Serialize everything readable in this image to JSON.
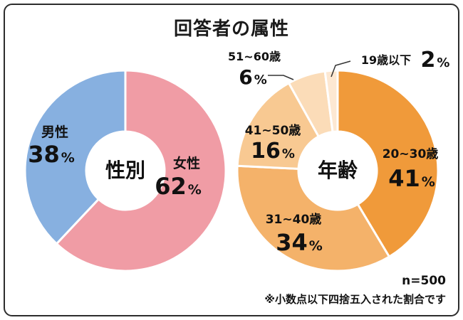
{
  "title": "回答者の属性",
  "sample_size": "n=500",
  "footnote": "※小数点以下四捨五入された割合です",
  "chart_data": [
    {
      "type": "pie",
      "style": "donut",
      "center_label": "性別",
      "slices": [
        {
          "label": "女性",
          "value": 62,
          "display": "62",
          "color": "#f09ca5"
        },
        {
          "label": "男性",
          "value": 38,
          "display": "38",
          "color": "#87b0e0"
        }
      ]
    },
    {
      "type": "pie",
      "style": "donut",
      "center_label": "年齢",
      "slices": [
        {
          "label": "20~30歳",
          "value": 41,
          "display": "41",
          "color": "#f09a3a"
        },
        {
          "label": "31~40歳",
          "value": 34,
          "display": "34",
          "color": "#f4b26a"
        },
        {
          "label": "41~50歳",
          "value": 16,
          "display": "16",
          "color": "#f8c992"
        },
        {
          "label": "51~60歳",
          "value": 6,
          "display": "6",
          "color": "#fbdcb8"
        },
        {
          "label": "19歳以下",
          "value": 2,
          "display": "2",
          "color": "#fde8d2"
        }
      ]
    }
  ]
}
